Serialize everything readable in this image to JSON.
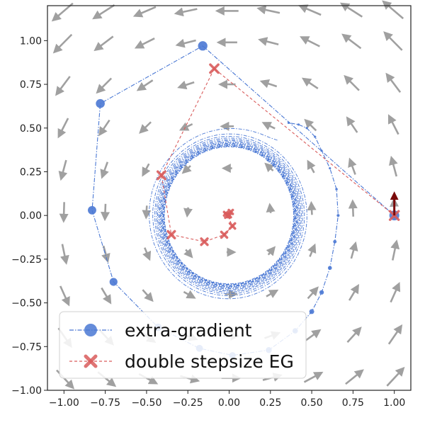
{
  "chart_data": {
    "type": "scatter",
    "title": "",
    "xlabel": "",
    "ylabel": "",
    "xlim": [
      -1.1,
      1.1
    ],
    "ylim": [
      -1.0,
      1.2
    ],
    "grid": false,
    "legend_placement": "lower-left",
    "xticks": [
      "−1.00",
      "−0.75",
      "−0.50",
      "−0.25",
      "0.00",
      "0.25",
      "0.50",
      "0.75",
      "1.00"
    ],
    "xtick_values": [
      -1.0,
      -0.75,
      -0.5,
      -0.25,
      0.0,
      0.25,
      0.5,
      0.75,
      1.0
    ],
    "yticks": [
      "−1.00",
      "−0.75",
      "−0.50",
      "−0.25",
      "0.00",
      "0.25",
      "0.50",
      "0.75",
      "1.00"
    ],
    "ytick_values": [
      -1.0,
      -0.75,
      -0.5,
      -0.25,
      0.0,
      0.25,
      0.5,
      0.75,
      1.0
    ],
    "series": [
      {
        "name": "extra-gradient",
        "color": "#4a78d4",
        "marker": "circle",
        "linestyle": "dashdot",
        "x": [
          1.0,
          -0.16,
          -0.78,
          -0.83,
          -0.7,
          -0.43,
          -0.18,
          0.02,
          0.24,
          0.4,
          0.5,
          0.56,
          0.61,
          0.64,
          0.66,
          0.65,
          0.61,
          0.56,
          0.52,
          0.47,
          0.42,
          0.36
        ],
        "y": [
          0.0,
          0.97,
          0.64,
          0.03,
          -0.38,
          -0.64,
          -0.76,
          -0.8,
          -0.77,
          -0.66,
          -0.55,
          -0.44,
          -0.3,
          -0.15,
          0.0,
          0.15,
          0.27,
          0.37,
          0.45,
          0.5,
          0.52,
          0.53
        ]
      },
      {
        "name": "double stepsize EG",
        "color": "#d95c5c",
        "marker": "x",
        "linestyle": "dashed",
        "x": [
          1.0,
          -0.09,
          -0.41,
          -0.35,
          -0.15,
          -0.03,
          0.02,
          -0.01,
          0.01,
          -0.02,
          0.0
        ],
        "y": [
          0.0,
          0.84,
          0.23,
          -0.11,
          -0.15,
          -0.11,
          -0.06,
          0.0,
          0.02,
          0.01,
          0.0
        ]
      }
    ],
    "inner_spiral": {
      "series": "extra-gradient",
      "radius_start": 0.52,
      "radius_end": 0.39,
      "turns": 14,
      "center": [
        0.0,
        0.0
      ]
    },
    "quiver": {
      "color": "#a0a0a0",
      "field": "rotation (-y, x) scaled by distance"
    },
    "gradient_arrow": {
      "color": "#7a0a0a",
      "origin": [
        1.0,
        0.0
      ],
      "direction": [
        0.0,
        1.0
      ]
    }
  }
}
